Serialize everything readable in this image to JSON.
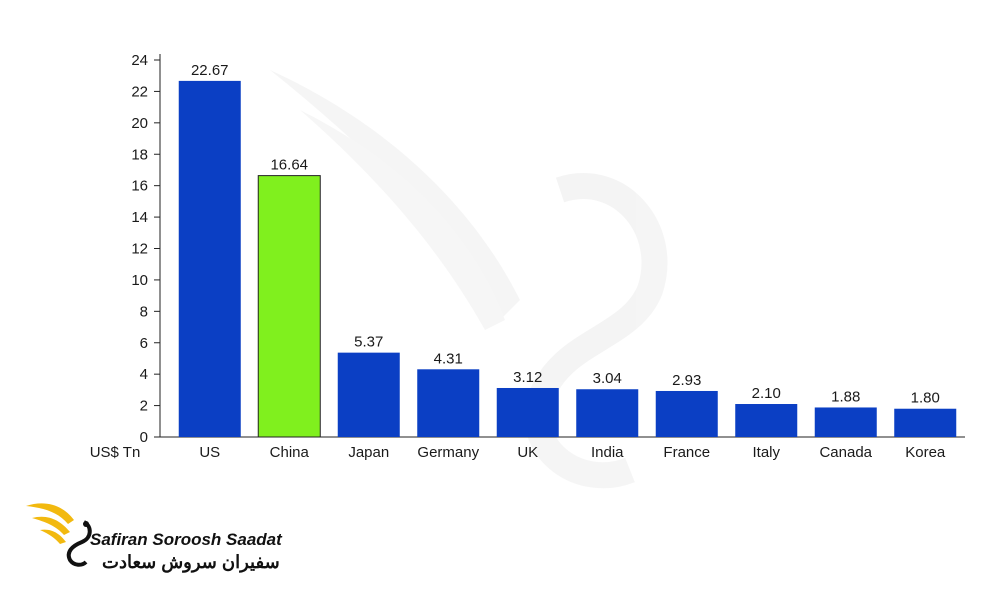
{
  "chart_data": {
    "type": "bar",
    "categories": [
      "US",
      "China",
      "Japan",
      "Germany",
      "UK",
      "India",
      "France",
      "Italy",
      "Canada",
      "Korea"
    ],
    "values": [
      22.67,
      16.64,
      5.37,
      4.31,
      3.12,
      3.04,
      2.93,
      2.1,
      1.88,
      1.8
    ],
    "value_labels": [
      "22.67",
      "16.64",
      "5.37",
      "4.31",
      "3.12",
      "3.04",
      "2.93",
      "2.10",
      "1.88",
      "1.80"
    ],
    "highlight_category": "China",
    "bar_color": "#0b3fc4",
    "highlight_color": "#80f01e",
    "ylim": [
      0,
      24
    ],
    "yticks": [
      0,
      2,
      4,
      6,
      8,
      10,
      12,
      14,
      16,
      18,
      20,
      22,
      24
    ],
    "unit_label": "US$ Tn",
    "grid": false,
    "legend": "none"
  },
  "watermark": {
    "line1": "Safiran Soroosh Saadat",
    "line2": "سفیران سروش سعادت",
    "accent_color": "#f2b90f"
  }
}
